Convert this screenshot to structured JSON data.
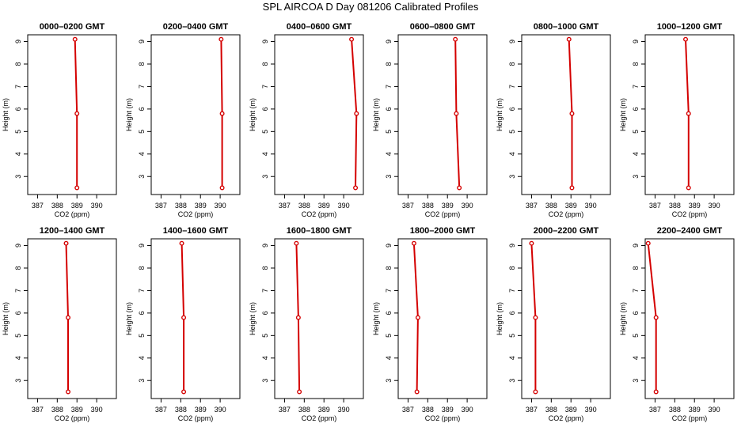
{
  "figure": {
    "title": "SPL AIRCOA D  Day 081206  Calibrated Profiles"
  },
  "style": {
    "line_color": "#d40000",
    "frame_color": "#000000",
    "text_color": "#000000"
  },
  "chart_data": [
    {
      "type": "line",
      "title": "0000–0200 GMT",
      "xlabel": "CO2 (ppm)",
      "ylabel": "Height (m)",
      "xlim": [
        386.5,
        391
      ],
      "ylim": [
        2.2,
        9.3
      ],
      "x_ticks": [
        387,
        388,
        389,
        390
      ],
      "y_ticks": [
        3,
        4,
        5,
        6,
        7,
        8,
        9
      ],
      "series": [
        {
          "x": [
            388.9,
            389.0,
            389.0
          ],
          "y": [
            9.1,
            5.8,
            2.5
          ]
        }
      ]
    },
    {
      "type": "line",
      "title": "0200–0400 GMT",
      "xlabel": "CO2 (ppm)",
      "ylabel": "Height (m)",
      "xlim": [
        386.5,
        391
      ],
      "ylim": [
        2.2,
        9.3
      ],
      "x_ticks": [
        387,
        388,
        389,
        390
      ],
      "y_ticks": [
        3,
        4,
        5,
        6,
        7,
        8,
        9
      ],
      "series": [
        {
          "x": [
            390.05,
            390.1,
            390.1
          ],
          "y": [
            9.1,
            5.8,
            2.5
          ]
        }
      ]
    },
    {
      "type": "line",
      "title": "0400–0600 GMT",
      "xlabel": "CO2 (ppm)",
      "ylabel": "Height (m)",
      "xlim": [
        386.5,
        391
      ],
      "ylim": [
        2.2,
        9.3
      ],
      "x_ticks": [
        387,
        388,
        389,
        390
      ],
      "y_ticks": [
        3,
        4,
        5,
        6,
        7,
        8,
        9
      ],
      "series": [
        {
          "x": [
            390.4,
            390.65,
            390.6
          ],
          "y": [
            9.1,
            5.8,
            2.5
          ]
        }
      ]
    },
    {
      "type": "line",
      "title": "0600–0800 GMT",
      "xlabel": "CO2 (ppm)",
      "ylabel": "Height (m)",
      "xlim": [
        386.5,
        391
      ],
      "ylim": [
        2.2,
        9.3
      ],
      "x_ticks": [
        387,
        388,
        389,
        390
      ],
      "y_ticks": [
        3,
        4,
        5,
        6,
        7,
        8,
        9
      ],
      "series": [
        {
          "x": [
            389.4,
            389.45,
            389.6
          ],
          "y": [
            9.1,
            5.8,
            2.5
          ]
        }
      ]
    },
    {
      "type": "line",
      "title": "0800–1000 GMT",
      "xlabel": "CO2 (ppm)",
      "ylabel": "Height (m)",
      "xlim": [
        386.5,
        391
      ],
      "ylim": [
        2.2,
        9.3
      ],
      "x_ticks": [
        387,
        388,
        389,
        390
      ],
      "y_ticks": [
        3,
        4,
        5,
        6,
        7,
        8,
        9
      ],
      "series": [
        {
          "x": [
            388.9,
            389.05,
            389.05
          ],
          "y": [
            9.1,
            5.8,
            2.5
          ]
        }
      ]
    },
    {
      "type": "line",
      "title": "1000–1200 GMT",
      "xlabel": "CO2 (ppm)",
      "ylabel": "Height (m)",
      "xlim": [
        386.5,
        391
      ],
      "ylim": [
        2.2,
        9.3
      ],
      "x_ticks": [
        387,
        388,
        389,
        390
      ],
      "y_ticks": [
        3,
        4,
        5,
        6,
        7,
        8,
        9
      ],
      "series": [
        {
          "x": [
            388.55,
            388.7,
            388.7
          ],
          "y": [
            9.1,
            5.8,
            2.5
          ]
        }
      ]
    },
    {
      "type": "line",
      "title": "1200–1400 GMT",
      "xlabel": "CO2 (ppm)",
      "ylabel": "Height (m)",
      "xlim": [
        386.5,
        391
      ],
      "ylim": [
        2.2,
        9.3
      ],
      "x_ticks": [
        387,
        388,
        389,
        390
      ],
      "y_ticks": [
        3,
        4,
        5,
        6,
        7,
        8,
        9
      ],
      "series": [
        {
          "x": [
            388.45,
            388.55,
            388.55
          ],
          "y": [
            9.1,
            5.8,
            2.5
          ]
        }
      ]
    },
    {
      "type": "line",
      "title": "1400–1600 GMT",
      "xlabel": "CO2 (ppm)",
      "ylabel": "Height (m)",
      "xlim": [
        386.5,
        391
      ],
      "ylim": [
        2.2,
        9.3
      ],
      "x_ticks": [
        387,
        388,
        389,
        390
      ],
      "y_ticks": [
        3,
        4,
        5,
        6,
        7,
        8,
        9
      ],
      "series": [
        {
          "x": [
            388.05,
            388.15,
            388.15
          ],
          "y": [
            9.1,
            5.8,
            2.5
          ]
        }
      ]
    },
    {
      "type": "line",
      "title": "1600–1800 GMT",
      "xlabel": "CO2 (ppm)",
      "ylabel": "Height (m)",
      "xlim": [
        386.5,
        391
      ],
      "ylim": [
        2.2,
        9.3
      ],
      "x_ticks": [
        387,
        388,
        389,
        390
      ],
      "y_ticks": [
        3,
        4,
        5,
        6,
        7,
        8,
        9
      ],
      "series": [
        {
          "x": [
            387.6,
            387.7,
            387.75
          ],
          "y": [
            9.1,
            5.8,
            2.5
          ]
        }
      ]
    },
    {
      "type": "line",
      "title": "1800–2000 GMT",
      "xlabel": "CO2 (ppm)",
      "ylabel": "Height (m)",
      "xlim": [
        386.5,
        391
      ],
      "ylim": [
        2.2,
        9.3
      ],
      "x_ticks": [
        387,
        388,
        389,
        390
      ],
      "y_ticks": [
        3,
        4,
        5,
        6,
        7,
        8,
        9
      ],
      "series": [
        {
          "x": [
            387.3,
            387.5,
            387.45
          ],
          "y": [
            9.1,
            5.8,
            2.5
          ]
        }
      ]
    },
    {
      "type": "line",
      "title": "2000–2200 GMT",
      "xlabel": "CO2 (ppm)",
      "ylabel": "Height (m)",
      "xlim": [
        386.5,
        391
      ],
      "ylim": [
        2.2,
        9.3
      ],
      "x_ticks": [
        387,
        388,
        389,
        390
      ],
      "y_ticks": [
        3,
        4,
        5,
        6,
        7,
        8,
        9
      ],
      "series": [
        {
          "x": [
            387.0,
            387.2,
            387.2
          ],
          "y": [
            9.1,
            5.8,
            2.5
          ]
        }
      ]
    },
    {
      "type": "line",
      "title": "2200–2400 GMT",
      "xlabel": "CO2 (ppm)",
      "ylabel": "Height (m)",
      "xlim": [
        386.5,
        391
      ],
      "ylim": [
        2.2,
        9.3
      ],
      "x_ticks": [
        387,
        388,
        389,
        390
      ],
      "y_ticks": [
        3,
        4,
        5,
        6,
        7,
        8,
        9
      ],
      "series": [
        {
          "x": [
            386.65,
            387.05,
            387.05
          ],
          "y": [
            9.1,
            5.8,
            2.5
          ]
        }
      ]
    }
  ]
}
